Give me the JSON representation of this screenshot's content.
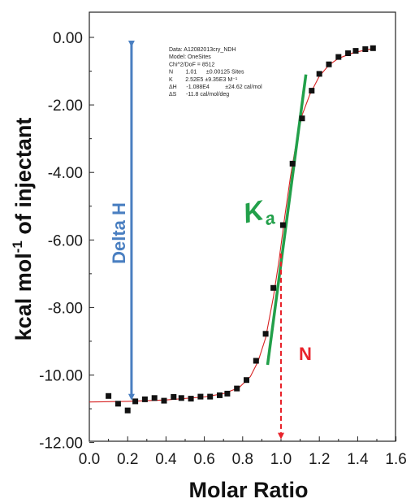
{
  "chart_data": {
    "type": "scatter",
    "xlabel": "Molar Ratio",
    "ylabel": {
      "prefix": "kcal mol",
      "sup": "-1",
      "suffix": " of injectant"
    },
    "xlim": [
      0.0,
      1.6
    ],
    "ylim": [
      -12.0,
      0.5
    ],
    "x_ticks": [
      "0.0",
      "0.2",
      "0.4",
      "0.6",
      "0.8",
      "1.0",
      "1.2",
      "1.4",
      "1.6"
    ],
    "y_ticks": [
      "0.00",
      "-2.00",
      "-4.00",
      "-6.00",
      "-8.00",
      "-10.00",
      "-12.00"
    ],
    "grid": false,
    "points": [
      {
        "x": 0.1,
        "y": -10.62
      },
      {
        "x": 0.15,
        "y": -10.85
      },
      {
        "x": 0.2,
        "y": -11.05
      },
      {
        "x": 0.24,
        "y": -10.78
      },
      {
        "x": 0.29,
        "y": -10.72
      },
      {
        "x": 0.34,
        "y": -10.68
      },
      {
        "x": 0.39,
        "y": -10.76
      },
      {
        "x": 0.44,
        "y": -10.65
      },
      {
        "x": 0.48,
        "y": -10.68
      },
      {
        "x": 0.53,
        "y": -10.7
      },
      {
        "x": 0.58,
        "y": -10.64
      },
      {
        "x": 0.63,
        "y": -10.64
      },
      {
        "x": 0.68,
        "y": -10.6
      },
      {
        "x": 0.72,
        "y": -10.55
      },
      {
        "x": 0.77,
        "y": -10.4
      },
      {
        "x": 0.82,
        "y": -10.15
      },
      {
        "x": 0.87,
        "y": -9.58
      },
      {
        "x": 0.92,
        "y": -8.78
      },
      {
        "x": 0.96,
        "y": -7.42
      },
      {
        "x": 1.01,
        "y": -5.56
      },
      {
        "x": 1.06,
        "y": -3.74
      },
      {
        "x": 1.11,
        "y": -2.4
      },
      {
        "x": 1.16,
        "y": -1.58
      },
      {
        "x": 1.2,
        "y": -1.08
      },
      {
        "x": 1.25,
        "y": -0.8
      },
      {
        "x": 1.3,
        "y": -0.58
      },
      {
        "x": 1.35,
        "y": -0.47
      },
      {
        "x": 1.39,
        "y": -0.4
      },
      {
        "x": 1.44,
        "y": -0.35
      },
      {
        "x": 1.48,
        "y": -0.32
      }
    ],
    "fit_curve": [
      [
        0.0,
        -10.8
      ],
      [
        0.2,
        -10.78
      ],
      [
        0.4,
        -10.74
      ],
      [
        0.6,
        -10.65
      ],
      [
        0.7,
        -10.55
      ],
      [
        0.78,
        -10.38
      ],
      [
        0.84,
        -10.05
      ],
      [
        0.88,
        -9.6
      ],
      [
        0.92,
        -8.9
      ],
      [
        0.96,
        -7.7
      ],
      [
        0.99,
        -6.6
      ],
      [
        1.02,
        -5.3
      ],
      [
        1.05,
        -4.1
      ],
      [
        1.08,
        -3.1
      ],
      [
        1.11,
        -2.3
      ],
      [
        1.15,
        -1.7
      ],
      [
        1.2,
        -1.15
      ],
      [
        1.25,
        -0.82
      ],
      [
        1.3,
        -0.62
      ],
      [
        1.38,
        -0.45
      ],
      [
        1.48,
        -0.33
      ]
    ],
    "fit_color": "#d62020",
    "marker_color": "#111111",
    "annotations": {
      "delta_h": {
        "label": "Delta H",
        "color": "#4a7fc1",
        "x": 0.22,
        "y_top": 0.0,
        "y_bottom": -10.8
      },
      "ka": {
        "label": "K",
        "sub": "a",
        "color": "#22a04a",
        "line": [
          [
            0.93,
            -9.7
          ],
          [
            1.13,
            -1.1
          ]
        ]
      },
      "n": {
        "label": "N",
        "color": "#e8232b",
        "x": 1.0,
        "y_top": -6.4,
        "y_bottom": -12.0
      }
    },
    "info_box": [
      "Data: A12082013cry_NDH",
      "Model: OneSites",
      "Chi^2/DoF = 8512",
      "N        1.01      ±0.00125 Sites",
      "K        2.52E5 ±9.35E3 M⁻¹",
      "ΔH      -1.088E4          ±24.62 cal/mol",
      "ΔS      -11.8 cal/mol/deg"
    ]
  }
}
